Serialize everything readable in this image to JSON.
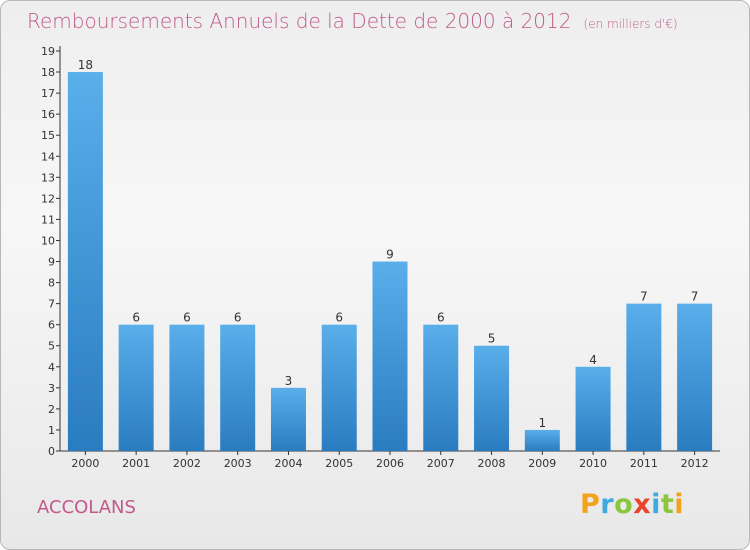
{
  "title": "Remboursements Annuels de la Dette de 2000 à 2012",
  "subtitle": "(en milliers d'€)",
  "location": "ACCOLANS",
  "logo": {
    "text": "Proxiti",
    "letters": [
      {
        "ch": "P",
        "color": "#f2a21b"
      },
      {
        "ch": "r",
        "color": "#3fa9e0"
      },
      {
        "ch": "o",
        "color": "#8cc63f"
      },
      {
        "ch": "x",
        "color": "#e8452c"
      },
      {
        "ch": "i",
        "color": "#3fa9e0"
      },
      {
        "ch": "t",
        "color": "#8cc63f"
      },
      {
        "ch": "i",
        "color": "#f2a21b"
      }
    ]
  },
  "colors": {
    "bar_top": "#5aaeea",
    "bar_bottom": "#2a7cc0",
    "title": "#c05a8a"
  },
  "chart_data": {
    "type": "bar",
    "title": "Remboursements Annuels de la Dette de 2000 à 2012",
    "subtitle": "(en milliers d'€)",
    "categories": [
      "2000",
      "2001",
      "2002",
      "2003",
      "2004",
      "2005",
      "2006",
      "2007",
      "2008",
      "2009",
      "2010",
      "2011",
      "2012"
    ],
    "values": [
      18,
      6,
      6,
      6,
      3,
      6,
      9,
      6,
      5,
      1,
      4,
      7,
      7
    ],
    "ylim": [
      0,
      19
    ],
    "yticks": [
      0,
      1,
      2,
      3,
      4,
      5,
      6,
      7,
      8,
      9,
      10,
      11,
      12,
      13,
      14,
      15,
      16,
      17,
      18,
      19
    ],
    "grid": false,
    "legend": "none"
  }
}
